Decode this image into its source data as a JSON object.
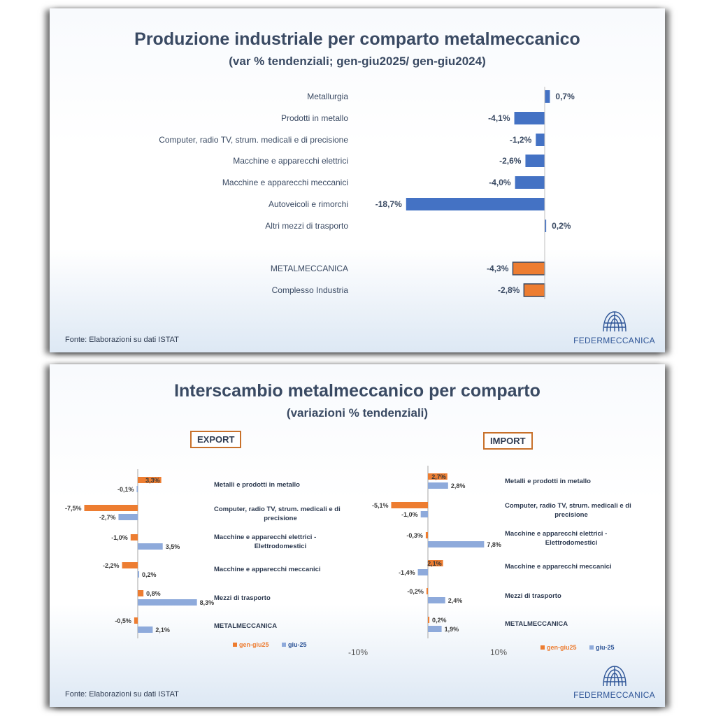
{
  "slide1": {
    "title": "Produzione industriale per comparto metalmeccanico",
    "subtitle": "(var % tendenziali;  gen-giu2025/ gen-giu2024)",
    "source": "Fonte: Elaborazioni su dati ISTAT",
    "logo_text": "FEDERMECCANICA"
  },
  "slide2": {
    "title": "Interscambio metalmeccanico per comparto",
    "subtitle": "(variazioni % tendenziali)",
    "export_label": "EXPORT",
    "import_label": "IMPORT",
    "axis_left": "-10%",
    "axis_right": "10%",
    "source": "Fonte: Elaborazioni su dati ISTAT",
    "logo_text": "FEDERMECCANICA"
  },
  "colors": {
    "blue": "#4472c4",
    "orange": "#ed7d31",
    "light_blue": "#8eaadb",
    "title": "#3a4a63"
  },
  "chart_data": [
    {
      "type": "bar",
      "orientation": "horizontal",
      "categories": [
        "Metallurgia",
        "Prodotti in metallo",
        "Computer, radio TV, strum. medicali e di precisione",
        "Macchine e apparecchi elettrici",
        "Macchine e apparecchi meccanici",
        "Autoveicoli e rimorchi",
        "Altri mezzi di trasporto",
        "METALMECCANICA",
        "Complesso Industria"
      ],
      "values": [
        0.7,
        -4.1,
        -1.2,
        -2.6,
        -4.0,
        -18.7,
        0.2,
        -4.3,
        -2.8
      ],
      "labels": [
        "0,7%",
        "-4,1%",
        "-1,2%",
        "-2,6%",
        "-4,0%",
        "-18,7%",
        "0,2%",
        "-4,3%",
        "-2,8%"
      ],
      "highlight": [
        false,
        false,
        false,
        false,
        false,
        false,
        false,
        true,
        true
      ]
    },
    {
      "type": "bar",
      "orientation": "horizontal",
      "categories": [
        "Metalli e prodotti in metallo",
        "Computer, radio TV, strum. medicali e di precisione",
        "Macchine e apparecchi elettrici - Elettrodomestici",
        "Macchine e apparecchi meccanici",
        "Mezzi di trasporto",
        "METALMECCANICA"
      ],
      "series": [
        {
          "name": "gen-giu25",
          "values": [
            3.3,
            -7.5,
            -1.0,
            -2.2,
            0.8,
            -0.5
          ],
          "labels": [
            "3,3%",
            "-7,5%",
            "-1,0%",
            "-2,2%",
            "0,8%",
            "-0,5%"
          ]
        },
        {
          "name": "giu-25",
          "values": [
            -0.1,
            -2.7,
            3.5,
            0.2,
            8.3,
            2.1
          ],
          "labels": [
            "-0,1%",
            "-2,7%",
            "3,5%",
            "0,2%",
            "8,3%",
            "2,1%"
          ]
        }
      ]
    },
    {
      "type": "bar",
      "orientation": "horizontal",
      "categories": [
        "Metalli e prodotti in metallo",
        "Computer, radio TV, strum. medicali e di precisione",
        "Macchine e apparecchi elettrici - Elettrodomestici",
        "Macchine e apparecchi meccanici",
        "Mezzi di trasporto",
        "METALMECCANICA"
      ],
      "series": [
        {
          "name": "gen-giu25",
          "values": [
            2.7,
            -5.1,
            -0.3,
            2.1,
            -0.2,
            0.2
          ],
          "labels": [
            "2,7%",
            "-5,1%",
            "-0,3%",
            "2,1%",
            "-0,2%",
            "0,2%"
          ]
        },
        {
          "name": "giu-25",
          "values": [
            2.8,
            -1.0,
            7.8,
            -1.4,
            2.4,
            1.9
          ],
          "labels": [
            "2,8%",
            "-1,0%",
            "7,8%",
            "-1,4%",
            "2,4%",
            "1,9%"
          ]
        }
      ]
    }
  ]
}
